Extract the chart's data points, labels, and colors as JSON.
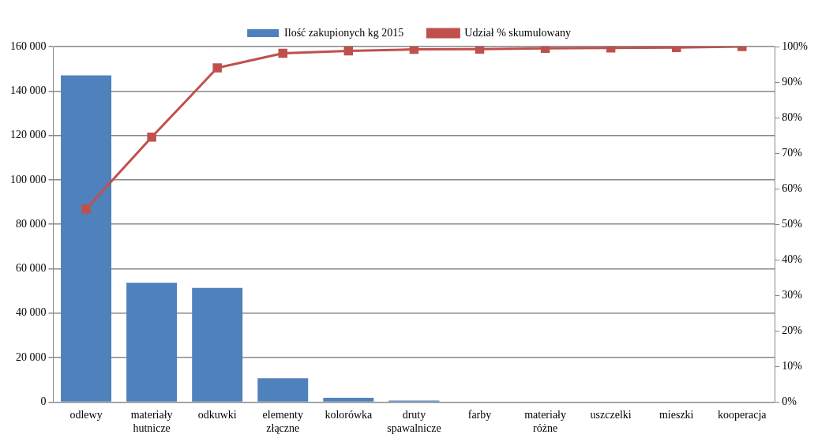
{
  "chart_data": {
    "type": "bar",
    "categories": [
      "odlewy",
      "materiały hutnicze",
      "odkuwki",
      "elementy złączne",
      "kolorówka",
      "druty spawalnicze",
      "farby",
      "materiały różne",
      "uszczelki",
      "mieszki",
      "kooperacja"
    ],
    "series": [
      {
        "name": "Ilość zakupionych kg 2015",
        "color": "#4f81bd",
        "values": [
          147000,
          53700,
          51400,
          10700,
          1900,
          700,
          null,
          null,
          null,
          null,
          null
        ]
      },
      {
        "name": "Udział % skumulowany",
        "type": "line",
        "axis": "y2",
        "color": "#c0504d",
        "marker": "square",
        "values": [
          54.3,
          74.5,
          94,
          98.1,
          98.8,
          99.2,
          99.3,
          99.5,
          99.6,
          99.7,
          100
        ]
      }
    ],
    "ylim": [
      0,
      160000
    ],
    "yticks": [
      {
        "value": 0,
        "label": "0"
      },
      {
        "value": 20000,
        "label": "20 000"
      },
      {
        "value": 40000,
        "label": "40 000"
      },
      {
        "value": 60000,
        "label": "60 000"
      },
      {
        "value": 80000,
        "label": "80 000"
      },
      {
        "value": 100000,
        "label": "100 000"
      },
      {
        "value": 120000,
        "label": "120 000"
      },
      {
        "value": 140000,
        "label": "140 000"
      },
      {
        "value": 160000,
        "label": "160 000"
      }
    ],
    "y2lim": [
      0,
      100
    ],
    "y2ticks": [
      {
        "value": 0,
        "label": "0%"
      },
      {
        "value": 10,
        "label": "10%"
      },
      {
        "value": 20,
        "label": "20%"
      },
      {
        "value": 30,
        "label": "30%"
      },
      {
        "value": 40,
        "label": "40%"
      },
      {
        "value": 50,
        "label": "50%"
      },
      {
        "value": 60,
        "label": "60%"
      },
      {
        "value": 70,
        "label": "70%"
      },
      {
        "value": 80,
        "label": "80%"
      },
      {
        "value": 90,
        "label": "90%"
      },
      {
        "value": 100,
        "label": "100%"
      }
    ],
    "grid": "y",
    "legend": "top"
  }
}
